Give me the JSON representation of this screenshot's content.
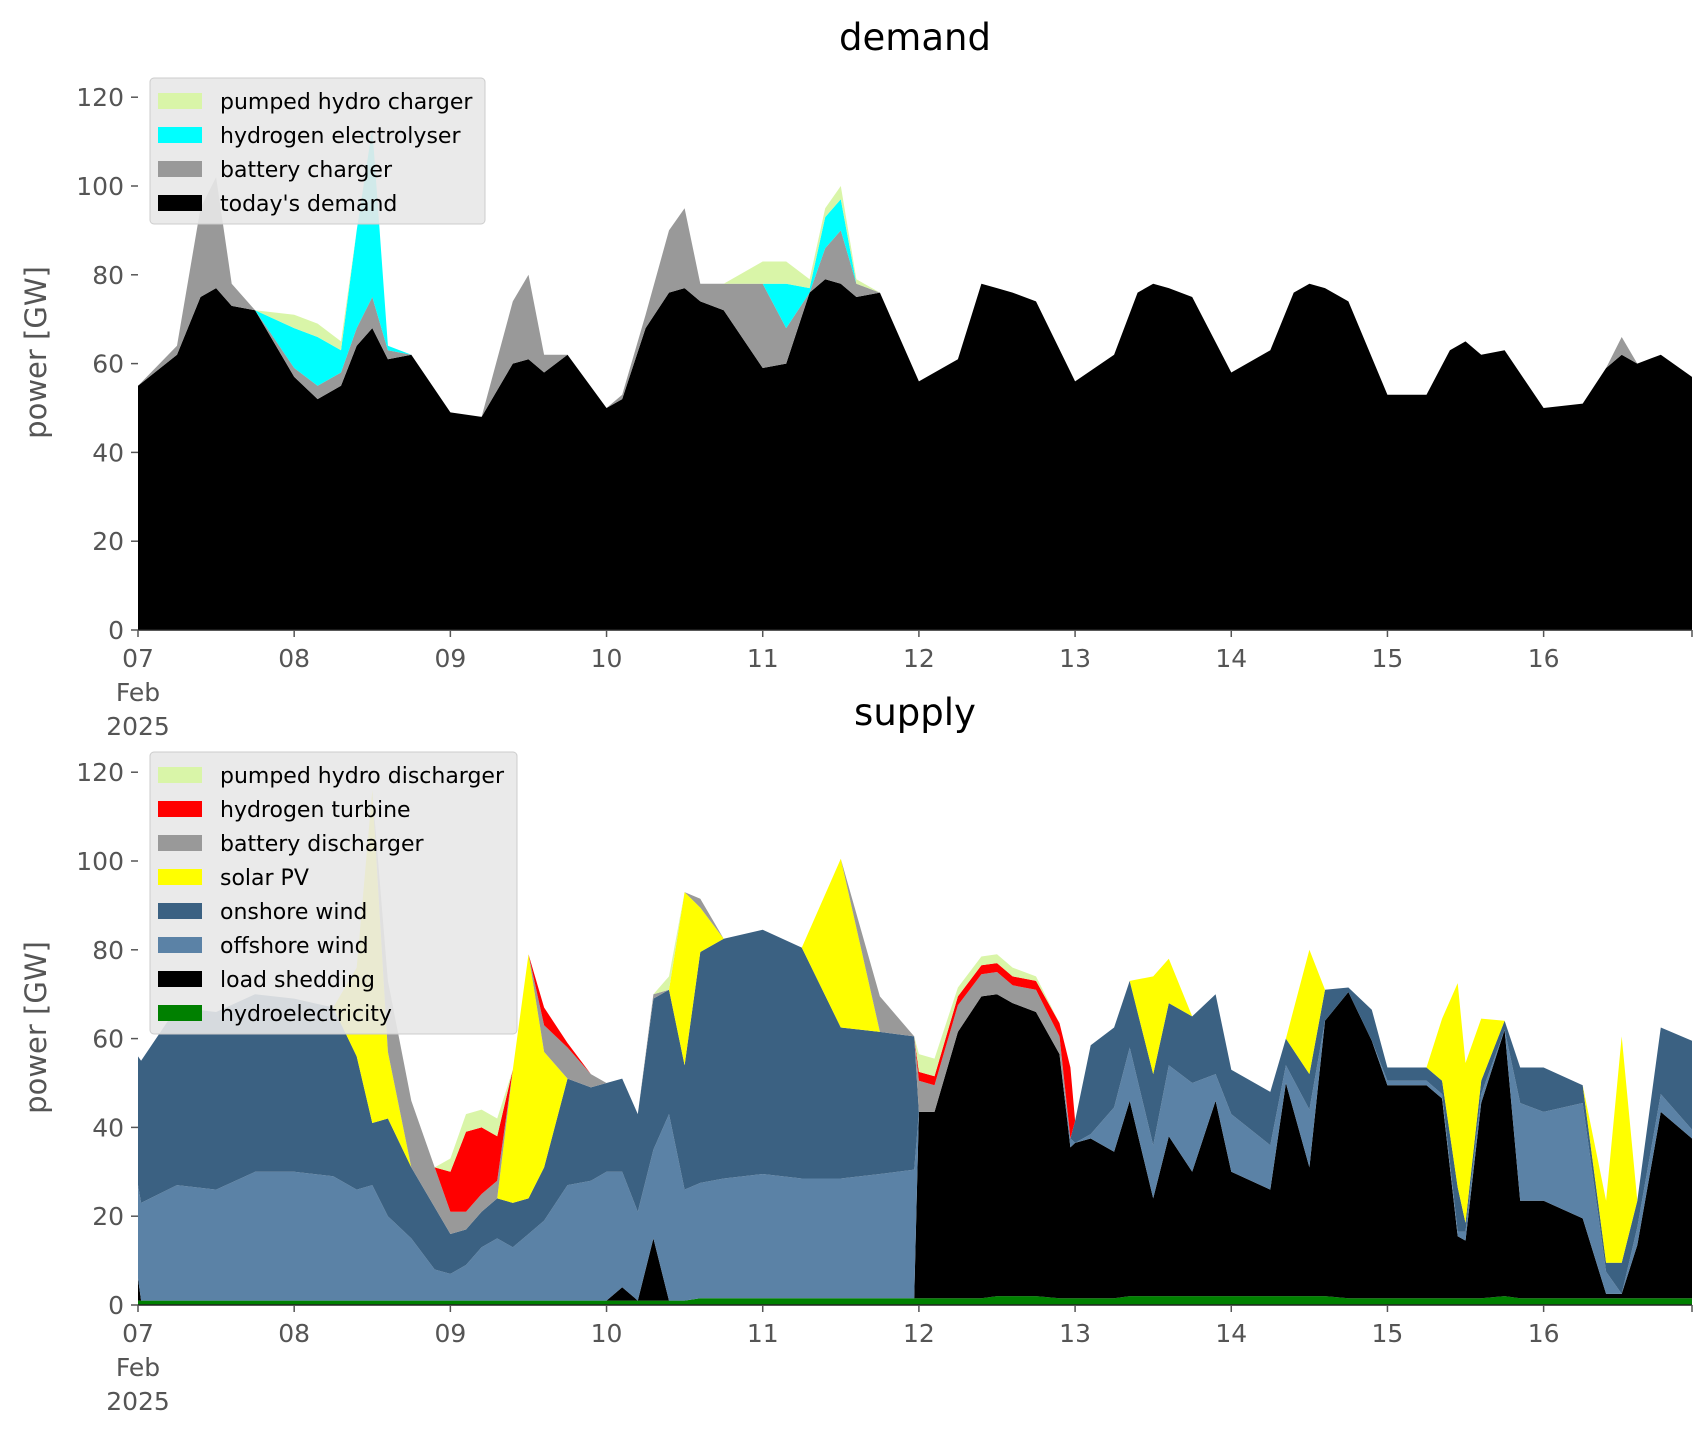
{
  "colors": {
    "pumped_hydro": "#d9f5a8",
    "hydrogen_electrolyser": "#00ffff",
    "hydrogen_turbine": "#ff0000",
    "battery": "#999999",
    "demand": "#000000",
    "solar": "#ffff00",
    "onshore_wind": "#3b6182",
    "offshore_wind": "#5b82a6",
    "load_shedding": "#000000",
    "hydro": "#008000",
    "legend_bg": "#e8e8e8",
    "axis_text": "#555555"
  },
  "chart_data": [
    {
      "type": "area",
      "title": "demand",
      "ylabel": "power [GW]",
      "xlabel": "",
      "ylim": [
        0,
        125
      ],
      "yticks": [
        "0",
        "20",
        "40",
        "60",
        "80",
        "100",
        "120"
      ],
      "xticks": [
        "07",
        "08",
        "09",
        "10",
        "11",
        "12",
        "13",
        "14",
        "15",
        "16"
      ],
      "xtick_sub": [
        "Feb",
        "2025"
      ],
      "grid": false,
      "legend_position": "top-left",
      "x": [
        7.0,
        7.25,
        7.4,
        7.5,
        7.6,
        7.75,
        8.0,
        8.15,
        8.3,
        8.4,
        8.5,
        8.6,
        8.75,
        9.0,
        9.2,
        9.4,
        9.5,
        9.6,
        9.75,
        10.0,
        10.1,
        10.25,
        10.4,
        10.5,
        10.6,
        10.75,
        11.0,
        11.15,
        11.3,
        11.4,
        11.5,
        11.6,
        11.75,
        12.0,
        12.25,
        12.4,
        12.5,
        12.6,
        12.75,
        13.0,
        13.25,
        13.4,
        13.5,
        13.6,
        13.75,
        14.0,
        14.25,
        14.4,
        14.5,
        14.6,
        14.75,
        15.0,
        15.25,
        15.4,
        15.5,
        15.6,
        15.75,
        16.0,
        16.25,
        16.4,
        16.5,
        16.6,
        16.75,
        16.95
      ],
      "series": [
        {
          "name": "today's demand",
          "values": [
            55,
            62,
            75,
            77,
            73,
            72,
            57,
            52,
            55,
            64,
            68,
            61,
            62,
            49,
            48,
            60,
            61,
            58,
            62,
            50,
            52,
            68,
            76,
            77,
            74,
            72,
            59,
            60,
            76,
            79,
            78,
            75,
            76,
            56,
            61,
            78,
            77,
            76,
            74,
            56,
            62,
            76,
            78,
            77,
            75,
            58,
            63,
            76,
            78,
            77,
            74,
            53,
            53,
            63,
            65,
            62,
            63,
            50,
            51,
            59,
            62,
            60,
            62,
            57
          ]
        },
        {
          "name": "battery charger",
          "values": [
            0,
            2,
            20,
            25,
            5,
            0,
            2,
            3,
            3,
            4,
            7,
            2,
            0,
            0,
            0,
            14,
            19,
            4,
            0,
            0,
            1,
            3,
            14,
            18,
            4,
            6,
            19,
            8,
            0,
            7,
            12,
            3,
            0,
            0,
            0,
            0,
            0,
            0,
            0,
            0,
            0,
            0,
            0,
            0,
            0,
            0,
            0,
            0,
            0,
            0,
            0,
            0,
            0,
            0,
            0,
            0,
            0,
            0,
            0,
            0,
            4,
            0,
            0,
            0
          ]
        },
        {
          "name": "hydrogen electrolyser",
          "values": [
            0,
            0,
            0,
            0,
            0,
            0,
            9,
            11,
            5,
            22,
            38,
            1,
            0,
            0,
            0,
            0,
            0,
            0,
            0,
            0,
            0,
            0,
            0,
            0,
            0,
            0,
            0,
            10,
            1,
            7,
            7,
            0,
            0,
            0,
            0,
            0,
            0,
            0,
            0,
            0,
            0,
            0,
            0,
            0,
            0,
            0,
            0,
            0,
            0,
            0,
            0,
            0,
            0,
            0,
            0,
            0,
            0,
            0,
            0,
            0,
            0,
            0,
            0,
            0
          ]
        },
        {
          "name": "pumped hydro charger",
          "values": [
            0,
            0,
            0,
            0,
            0,
            0,
            3,
            3,
            2,
            0,
            0,
            0,
            0,
            0,
            0,
            0,
            0,
            0,
            0,
            0,
            0,
            0,
            0,
            0,
            0,
            0,
            5,
            5,
            2,
            2,
            3,
            1,
            0,
            0,
            0,
            0,
            0,
            0,
            0,
            0,
            0,
            0,
            0,
            0,
            0,
            0,
            0,
            0,
            0,
            0,
            0,
            0,
            0,
            0,
            0,
            0,
            0,
            0,
            0,
            0,
            0,
            0,
            0,
            0
          ]
        }
      ],
      "legend": [
        "pumped hydro charger",
        "hydrogen electrolyser",
        "battery charger",
        "today's demand"
      ]
    },
    {
      "type": "area",
      "title": "supply",
      "ylabel": "power [GW]",
      "xlabel": "",
      "ylim": [
        0,
        125
      ],
      "yticks": [
        "0",
        "20",
        "40",
        "60",
        "80",
        "100",
        "120"
      ],
      "xticks": [
        "07",
        "08",
        "09",
        "10",
        "11",
        "12",
        "13",
        "14",
        "15",
        "16"
      ],
      "xtick_sub": [
        "Feb",
        "2025"
      ],
      "grid": false,
      "legend_position": "top-left",
      "x": [
        7.0,
        7.02,
        7.25,
        7.5,
        7.75,
        8.0,
        8.25,
        8.4,
        8.5,
        8.6,
        8.75,
        8.9,
        9.0,
        9.1,
        9.2,
        9.3,
        9.4,
        9.5,
        9.6,
        9.75,
        9.9,
        10.0,
        10.1,
        10.2,
        10.3,
        10.4,
        10.5,
        10.6,
        10.75,
        11.0,
        11.25,
        11.5,
        11.75,
        11.97,
        12.0,
        12.1,
        12.25,
        12.4,
        12.5,
        12.6,
        12.75,
        12.9,
        12.97,
        13.0,
        13.1,
        13.25,
        13.35,
        13.5,
        13.6,
        13.75,
        13.9,
        14.0,
        14.25,
        14.35,
        14.5,
        14.6,
        14.75,
        14.9,
        15.0,
        15.25,
        15.35,
        15.45,
        15.5,
        15.6,
        15.75,
        15.85,
        16.0,
        16.25,
        16.4,
        16.5,
        16.6,
        16.75,
        16.95
      ],
      "series": [
        {
          "name": "hydroelectricity",
          "values": [
            1,
            1,
            1,
            1,
            1,
            1,
            1,
            1,
            1,
            1,
            1,
            1,
            1,
            1,
            1,
            1,
            1,
            1,
            1,
            1,
            1,
            1,
            1,
            1,
            1,
            1,
            1,
            1.5,
            1.5,
            1.5,
            1.5,
            1.5,
            1.5,
            1.5,
            1.5,
            1.5,
            1.5,
            1.5,
            2,
            2,
            2,
            1.5,
            1.5,
            1.5,
            1.5,
            1.5,
            2,
            2,
            2,
            2,
            2,
            2,
            2,
            2,
            2,
            2,
            1.5,
            1.5,
            1.5,
            1.5,
            1.5,
            1.5,
            1.5,
            1.5,
            2,
            1.5,
            1.5,
            1.5,
            1.5,
            1.5,
            1.5,
            1.5,
            1.5
          ]
        },
        {
          "name": "load shedding",
          "values": [
            5,
            0,
            0,
            0,
            0,
            0,
            0,
            0,
            0,
            0,
            0,
            0,
            0,
            0,
            0,
            0,
            0,
            0,
            0,
            0,
            0,
            0,
            3,
            0,
            14,
            0,
            0,
            0,
            0,
            0,
            0,
            0,
            0,
            0,
            42,
            42,
            60,
            68,
            68,
            66,
            64,
            55,
            34,
            35,
            36,
            33,
            44,
            22,
            36,
            28,
            44,
            28,
            24,
            48,
            29,
            62,
            69,
            58,
            48,
            48,
            45,
            14,
            13,
            44,
            60,
            22,
            22,
            18,
            1,
            1,
            12,
            42,
            36
          ]
        },
        {
          "name": "offshore wind",
          "values": [
            21,
            22,
            26,
            25,
            29,
            29,
            28,
            25,
            26,
            19,
            14,
            7,
            6,
            8,
            12,
            14,
            12,
            15,
            18,
            26,
            27,
            29,
            26,
            20,
            20,
            42,
            25,
            26,
            27,
            28,
            27,
            27,
            28,
            29,
            0,
            0,
            0,
            0,
            0,
            0,
            0,
            0,
            2,
            0,
            1,
            10,
            12,
            12,
            16,
            20,
            6,
            13,
            10,
            4,
            13,
            0,
            0,
            0,
            1,
            1,
            1,
            1,
            2,
            2,
            0,
            22,
            20,
            26,
            5,
            0,
            4,
            4,
            2
          ]
        },
        {
          "name": "onshore wind",
          "values": [
            29,
            32,
            40,
            40,
            40,
            39,
            38,
            30,
            14,
            22,
            16,
            14,
            9,
            8,
            8,
            9,
            10,
            8,
            12,
            24,
            21,
            20,
            21,
            22,
            34,
            28,
            28,
            52,
            54,
            55,
            52,
            34,
            32,
            30,
            0,
            0,
            0,
            0,
            0,
            0,
            0,
            0,
            0,
            5,
            20,
            18,
            15,
            16,
            14,
            15,
            18,
            10,
            12,
            6,
            8,
            7,
            1,
            7,
            3,
            3,
            3,
            10,
            2,
            3,
            2,
            8,
            10,
            4,
            2,
            7,
            6,
            15,
            20
          ]
        },
        {
          "name": "solar PV",
          "values": [
            0,
            0,
            0,
            0,
            0,
            0,
            0,
            20,
            75,
            15,
            0,
            0,
            0,
            0,
            0,
            0,
            30,
            55,
            26,
            0,
            0,
            0,
            0,
            0,
            0,
            0,
            39,
            10,
            0,
            0,
            0,
            38,
            0,
            0,
            0,
            0,
            0,
            0,
            0,
            0,
            0,
            0,
            0,
            0,
            0,
            0,
            0,
            22,
            10,
            0,
            0,
            0,
            0,
            0,
            28,
            0,
            0,
            0,
            0,
            0,
            14,
            46,
            36,
            14,
            0,
            0,
            0,
            0,
            14,
            51,
            0,
            0,
            0
          ]
        },
        {
          "name": "battery discharger",
          "values": [
            0,
            0,
            0,
            0,
            0,
            0,
            0,
            0,
            0,
            16,
            15,
            9,
            5,
            4,
            4,
            4,
            0,
            0,
            6,
            7,
            3,
            0,
            0,
            0,
            1,
            0,
            0,
            2,
            0,
            0,
            0,
            0,
            8,
            0,
            7,
            6,
            6,
            5,
            5,
            4,
            5,
            4,
            0,
            0,
            0,
            0,
            0,
            0,
            0,
            0,
            0,
            0,
            0,
            0,
            0,
            0,
            0,
            0,
            0,
            0,
            0,
            0,
            0,
            0,
            0,
            0,
            0,
            0,
            0,
            0,
            0,
            0,
            0
          ]
        },
        {
          "name": "hydrogen turbine",
          "values": [
            0,
            0,
            0,
            0,
            0,
            0,
            0,
            0,
            0,
            0,
            0,
            0,
            9,
            18,
            15,
            10,
            0,
            0,
            4,
            1,
            0,
            0,
            0,
            0,
            0,
            0,
            0,
            0,
            0,
            0,
            0,
            0,
            0,
            0,
            2,
            2,
            2,
            2,
            2,
            2,
            2,
            3,
            16,
            0,
            0,
            0,
            0,
            0,
            0,
            0,
            0,
            0,
            0,
            0,
            0,
            0,
            0,
            0,
            0,
            0,
            0,
            0,
            0,
            0,
            0,
            0,
            0,
            0,
            0,
            0,
            0,
            0,
            0
          ]
        },
        {
          "name": "pumped hydro discharger",
          "values": [
            0,
            0,
            0,
            0,
            0,
            0,
            0,
            0,
            0,
            0,
            0,
            0,
            3,
            4,
            4,
            4,
            0,
            0,
            0,
            0,
            0,
            0,
            0,
            0,
            0,
            3,
            0,
            0,
            0,
            0,
            0,
            0,
            0,
            0,
            4,
            4,
            2,
            2,
            2,
            2,
            1,
            0,
            0,
            0,
            0,
            0,
            0,
            0,
            0,
            0,
            0,
            0,
            0,
            0,
            0,
            0,
            0,
            0,
            0,
            0,
            0,
            0,
            0,
            0,
            0,
            0,
            0,
            0,
            0,
            0,
            0,
            0,
            0
          ]
        }
      ],
      "legend": [
        "pumped hydro discharger",
        "hydrogen turbine",
        "battery discharger",
        "solar PV",
        "onshore wind",
        "offshore wind",
        "load shedding",
        "hydroelectricity"
      ]
    }
  ]
}
